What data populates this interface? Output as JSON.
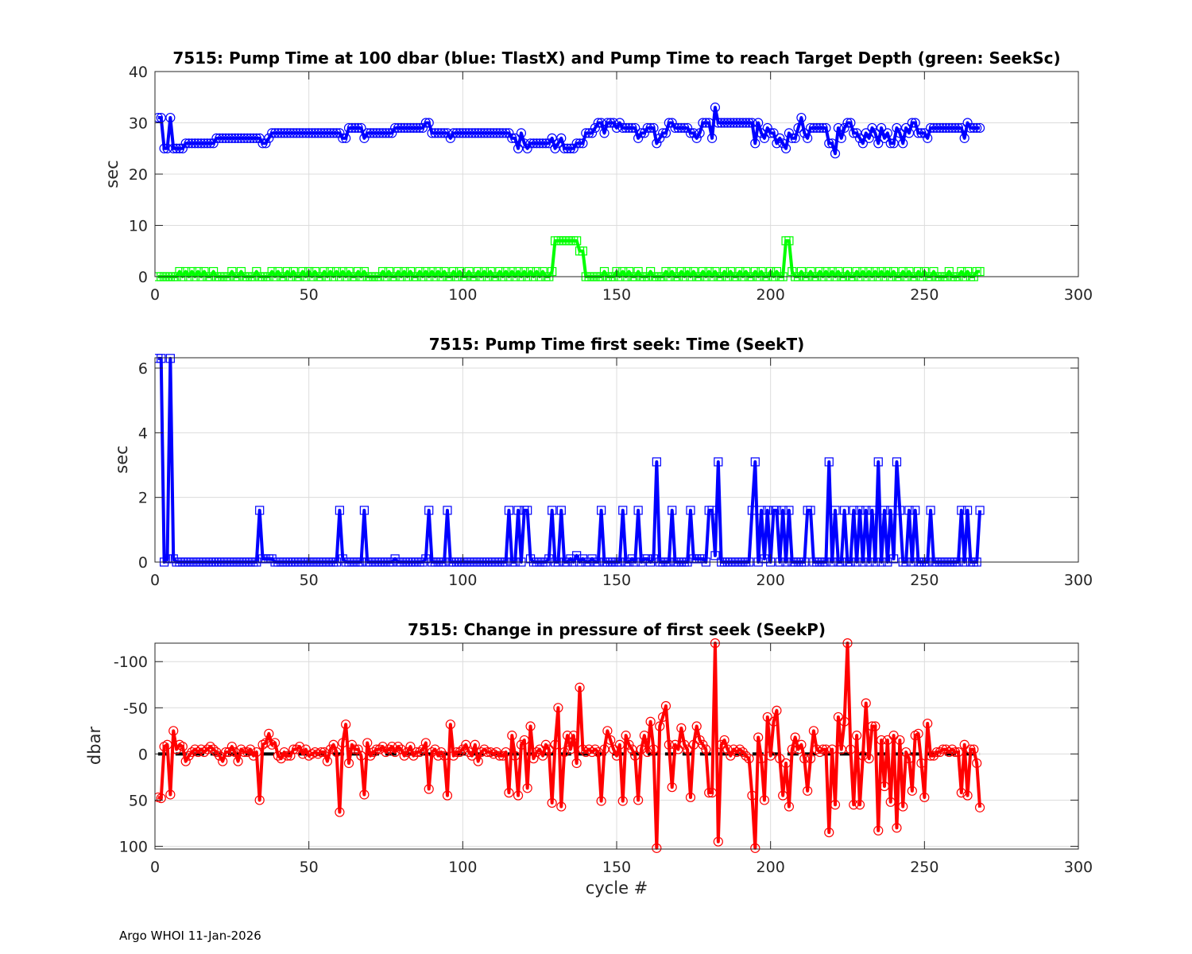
{
  "footer": "Argo WHOI 11-Jan-2026",
  "chart_data": [
    {
      "type": "line",
      "title": "7515:  Pump Time at 100 dbar (blue: TlastX) and Pump Time to reach Target Depth (green: SeekSc)",
      "xlabel": "",
      "ylabel": "sec",
      "xlim": [
        0,
        300
      ],
      "ylim": [
        0,
        40
      ],
      "xticks": [
        0,
        50,
        100,
        150,
        200,
        250,
        300
      ],
      "yticks": [
        0,
        10,
        20,
        30,
        40
      ],
      "y_reversed": false,
      "grid": true,
      "x_start": 1,
      "series": [
        {
          "name": "TlastX",
          "color": "#0000ff",
          "marker": "circle",
          "values": [
            31,
            31,
            25,
            25,
            31,
            25,
            25,
            25,
            25,
            26,
            26,
            26,
            26,
            26,
            26,
            26,
            26,
            26,
            26,
            27,
            27,
            27,
            27,
            27,
            27,
            27,
            27,
            27,
            27,
            27,
            27,
            27,
            27,
            27,
            26,
            26,
            27,
            28,
            28,
            28,
            28,
            28,
            28,
            28,
            28,
            28,
            28,
            28,
            28,
            28,
            28,
            28,
            28,
            28,
            28,
            28,
            28,
            28,
            28,
            28,
            27,
            27,
            29,
            29,
            29,
            29,
            29,
            27,
            28,
            28,
            28,
            28,
            28,
            28,
            28,
            28,
            28,
            29,
            29,
            29,
            29,
            29,
            29,
            29,
            29,
            29,
            29,
            30,
            30,
            28,
            28,
            28,
            28,
            28,
            28,
            27,
            28,
            28,
            28,
            28,
            28,
            28,
            28,
            28,
            28,
            28,
            28,
            28,
            28,
            28,
            28,
            28,
            28,
            28,
            28,
            27,
            27,
            25,
            28,
            26,
            25,
            26,
            26,
            26,
            26,
            26,
            26,
            26,
            27,
            25,
            26,
            27,
            25,
            25,
            25,
            25,
            26,
            26,
            26,
            28,
            28,
            28,
            29,
            30,
            30,
            28,
            30,
            30,
            30,
            29,
            30,
            29,
            29,
            29,
            29,
            29,
            27,
            28,
            28,
            29,
            29,
            29,
            26,
            27,
            28,
            28,
            30,
            30,
            29,
            29,
            29,
            29,
            29,
            28,
            28,
            27,
            28,
            30,
            30,
            30,
            27,
            33,
            30,
            30,
            30,
            30,
            30,
            30,
            30,
            30,
            30,
            30,
            30,
            30,
            26,
            30,
            28,
            27,
            29,
            28,
            28,
            26,
            27,
            26,
            25,
            28,
            27,
            27,
            29,
            31,
            28,
            27,
            29,
            29,
            29,
            29,
            29,
            29,
            26,
            26,
            24,
            29,
            27,
            29,
            30,
            30,
            28,
            28,
            27,
            26,
            28,
            27,
            29,
            28,
            26,
            29,
            27,
            28,
            26,
            26,
            29,
            28,
            26,
            29,
            28,
            30,
            30,
            28,
            28,
            28,
            27,
            29,
            29,
            29,
            29,
            29,
            29,
            29,
            29,
            29,
            29,
            29,
            27,
            30,
            29,
            29,
            29,
            29
          ]
        },
        {
          "name": "SeekSc",
          "color": "#00ff00",
          "marker": "square",
          "values": [
            0,
            0,
            0,
            0,
            0,
            0,
            0,
            1,
            0,
            1,
            0,
            1,
            0,
            1,
            0,
            1,
            0,
            0,
            1,
            0,
            0,
            0,
            0,
            0,
            1,
            0,
            0,
            1,
            0,
            0,
            0,
            0,
            1,
            0,
            0,
            0,
            0,
            1,
            0,
            1,
            0,
            0,
            1,
            0,
            1,
            0,
            0,
            1,
            0,
            1,
            0,
            1,
            0,
            0,
            1,
            0,
            1,
            0,
            1,
            0,
            1,
            0,
            1,
            0,
            0,
            1,
            0,
            1,
            0,
            0,
            0,
            0,
            0,
            1,
            0,
            1,
            0,
            0,
            1,
            0,
            1,
            0,
            1,
            0,
            0,
            1,
            0,
            1,
            0,
            1,
            0,
            1,
            0,
            1,
            0,
            0,
            1,
            0,
            1,
            0,
            0,
            1,
            0,
            0,
            1,
            0,
            1,
            0,
            1,
            0,
            0,
            1,
            0,
            1,
            0,
            1,
            0,
            1,
            0,
            1,
            0,
            1,
            0,
            1,
            0,
            1,
            0,
            0,
            1,
            7,
            7,
            7,
            7,
            7,
            7,
            7,
            7,
            5,
            5,
            0,
            0,
            0,
            0,
            0,
            0,
            1,
            0,
            0,
            0,
            1,
            0,
            1,
            0,
            1,
            0,
            0,
            1,
            0,
            0,
            0,
            1,
            0,
            0,
            0,
            0,
            1,
            0,
            1,
            0,
            0,
            1,
            0,
            1,
            0,
            1,
            0,
            0,
            1,
            0,
            1,
            0,
            1,
            0,
            0,
            1,
            0,
            1,
            0,
            0,
            1,
            0,
            1,
            0,
            0,
            1,
            0,
            1,
            0,
            0,
            1,
            0,
            1,
            0,
            0,
            7,
            7,
            1,
            0,
            0,
            1,
            0,
            0,
            1,
            0,
            0,
            1,
            0,
            1,
            0,
            1,
            0,
            1,
            0,
            0,
            1,
            0,
            0,
            1,
            0,
            1,
            0,
            1,
            0,
            1,
            0,
            1,
            0,
            1,
            0,
            1,
            0,
            0,
            1,
            0,
            1,
            0,
            0,
            1,
            0,
            1,
            0,
            0,
            1,
            0,
            0,
            0,
            0,
            1,
            0,
            0,
            0,
            1,
            0,
            1,
            0,
            0,
            1,
            1
          ]
        }
      ]
    },
    {
      "type": "line",
      "title": "7515: Pump Time first seek: Time (SeekT)",
      "xlabel": "",
      "ylabel": "sec",
      "xlim": [
        0,
        300
      ],
      "ylim": [
        0,
        6.32
      ],
      "xticks": [
        0,
        50,
        100,
        150,
        200,
        250,
        300
      ],
      "yticks": [
        0,
        2,
        4,
        6
      ],
      "y_reversed": false,
      "grid": true,
      "x_start": 1,
      "series": [
        {
          "name": "SeekT",
          "color": "#0000ff",
          "marker": "square",
          "values": [
            6.3,
            6.3,
            0,
            0.1,
            6.3,
            0.1,
            0,
            0,
            0,
            0,
            0,
            0,
            0,
            0,
            0,
            0,
            0,
            0,
            0,
            0,
            0,
            0,
            0,
            0,
            0,
            0,
            0,
            0,
            0,
            0,
            0,
            0,
            0,
            1.6,
            0.1,
            0.1,
            0.1,
            0.1,
            0,
            0,
            0,
            0,
            0,
            0,
            0,
            0,
            0,
            0,
            0,
            0,
            0,
            0,
            0,
            0,
            0,
            0,
            0,
            0,
            0,
            1.6,
            0.1,
            0,
            0,
            0,
            0,
            0,
            0,
            1.6,
            0,
            0,
            0,
            0,
            0,
            0,
            0,
            0,
            0,
            0.1,
            0,
            0,
            0,
            0,
            0,
            0,
            0,
            0,
            0,
            0.1,
            1.6,
            0,
            0,
            0,
            0,
            0,
            1.6,
            0,
            0,
            0,
            0,
            0,
            0,
            0,
            0,
            0,
            0,
            0,
            0,
            0,
            0,
            0,
            0,
            0,
            0,
            0,
            1.6,
            0,
            0,
            1.6,
            0,
            1.6,
            1.6,
            0.1,
            0,
            0,
            0,
            0,
            0,
            0.1,
            1.6,
            0,
            0,
            1.6,
            0,
            0,
            0.1,
            0,
            0.2,
            0,
            0.1,
            0,
            0,
            0.1,
            0,
            0,
            1.6,
            0,
            0,
            0,
            0,
            0,
            0,
            1.6,
            0,
            0,
            0.1,
            0,
            1.6,
            0,
            0.1,
            0.1,
            0,
            0.1,
            3.1,
            0,
            0,
            0,
            0,
            1.6,
            0,
            0,
            0,
            0,
            0,
            1.6,
            0.1,
            0.1,
            0.1,
            0.1,
            0,
            1.6,
            1.6,
            0.2,
            3.1,
            0,
            0,
            0,
            0,
            0,
            0,
            0,
            0,
            0,
            0,
            1.6,
            3.1,
            0,
            1.6,
            0.1,
            1.6,
            0,
            1.6,
            1.6,
            0,
            1.6,
            0,
            1.6,
            0,
            0,
            0,
            0,
            0,
            1.6,
            1.6,
            0,
            0,
            0,
            0,
            0,
            3.1,
            0,
            1.6,
            0,
            0,
            1.6,
            0,
            0,
            1.6,
            0,
            1.6,
            0,
            1.6,
            0,
            1.6,
            0,
            3.1,
            0,
            1.6,
            0,
            1.6,
            0.1,
            3.1,
            1.6,
            0,
            0,
            1.6,
            0,
            1.6,
            0,
            0,
            0,
            0,
            1.6,
            0,
            0,
            0,
            0,
            0,
            0,
            0,
            0,
            0,
            1.6,
            0,
            1.6,
            0,
            0,
            0,
            1.6
          ]
        }
      ]
    },
    {
      "type": "line",
      "title": "7515: Change in pressure of first seek (SeekP)",
      "xlabel": "cycle #",
      "ylabel": "dbar",
      "xlim": [
        0,
        300
      ],
      "ylim": [
        -120,
        103
      ],
      "xticks": [
        0,
        50,
        100,
        150,
        200,
        250,
        300
      ],
      "yticks": [
        -100,
        -50,
        0,
        50,
        100
      ],
      "y_reversed": true,
      "grid": true,
      "x_start": 1,
      "reference_line": {
        "y": 0,
        "x_range": [
          1,
          268
        ],
        "color": "#000000",
        "style": "dashed"
      },
      "series": [
        {
          "name": "SeekP",
          "color": "#ff0000",
          "marker": "circle",
          "values": [
            47,
            48,
            -8,
            -10,
            44,
            -25,
            -5,
            -10,
            -8,
            8,
            2,
            -2,
            -5,
            -2,
            -5,
            -2,
            -5,
            -8,
            -5,
            -2,
            2,
            8,
            -2,
            -2,
            -8,
            -2,
            8,
            -5,
            -2,
            -2,
            -5,
            2,
            -2,
            50,
            -10,
            -12,
            -22,
            -10,
            -12,
            2,
            5,
            -2,
            2,
            2,
            -5,
            -5,
            -8,
            0,
            -5,
            2,
            0,
            -2,
            0,
            -2,
            -2,
            8,
            -5,
            -10,
            -2,
            63,
            -12,
            -32,
            10,
            -10,
            -5,
            -5,
            2,
            44,
            -12,
            2,
            -2,
            -5,
            -5,
            -8,
            -2,
            -5,
            -8,
            -2,
            -8,
            -5,
            2,
            -2,
            -8,
            2,
            -2,
            -2,
            -5,
            -12,
            38,
            -2,
            -5,
            2,
            -2,
            2,
            45,
            -32,
            2,
            -2,
            -2,
            -5,
            -10,
            -2,
            2,
            -10,
            8,
            -2,
            -5,
            -2,
            -2,
            0,
            -2,
            2,
            2,
            -2,
            42,
            -20,
            2,
            45,
            -10,
            -15,
            37,
            -30,
            5,
            -2,
            -5,
            2,
            -10,
            -5,
            53,
            -10,
            -50,
            57,
            -2,
            -20,
            -5,
            -20,
            10,
            -72,
            -5,
            -2,
            -5,
            -2,
            -5,
            -2,
            51,
            -5,
            -25,
            -15,
            -5,
            2,
            -10,
            51,
            -20,
            -10,
            -5,
            2,
            50,
            -5,
            -20,
            -2,
            -35,
            -5,
            102,
            -30,
            -40,
            -52,
            -10,
            36,
            -10,
            -5,
            -28,
            -10,
            -5,
            47,
            -10,
            -30,
            -15,
            -10,
            -5,
            42,
            42,
            -120,
            95,
            -10,
            -15,
            -5,
            2,
            -5,
            -2,
            -5,
            -2,
            2,
            5,
            45,
            102,
            -18,
            5,
            50,
            -40,
            2,
            -35,
            -47,
            5,
            45,
            10,
            57,
            -5,
            -18,
            -5,
            -10,
            5,
            40,
            5,
            -25,
            -5,
            -2,
            -5,
            -5,
            85,
            -5,
            55,
            -40,
            -5,
            -35,
            -120,
            -5,
            55,
            -20,
            55,
            2,
            -55,
            5,
            -30,
            -30,
            83,
            -15,
            35,
            -15,
            52,
            -20,
            80,
            -15,
            57,
            -2,
            5,
            40,
            -20,
            -22,
            10,
            47,
            -33,
            2,
            2,
            -2,
            -2,
            -5,
            -5,
            -2,
            -5,
            -2,
            -2,
            42,
            -10,
            45,
            -5,
            -5,
            10,
            58
          ]
        }
      ]
    }
  ]
}
